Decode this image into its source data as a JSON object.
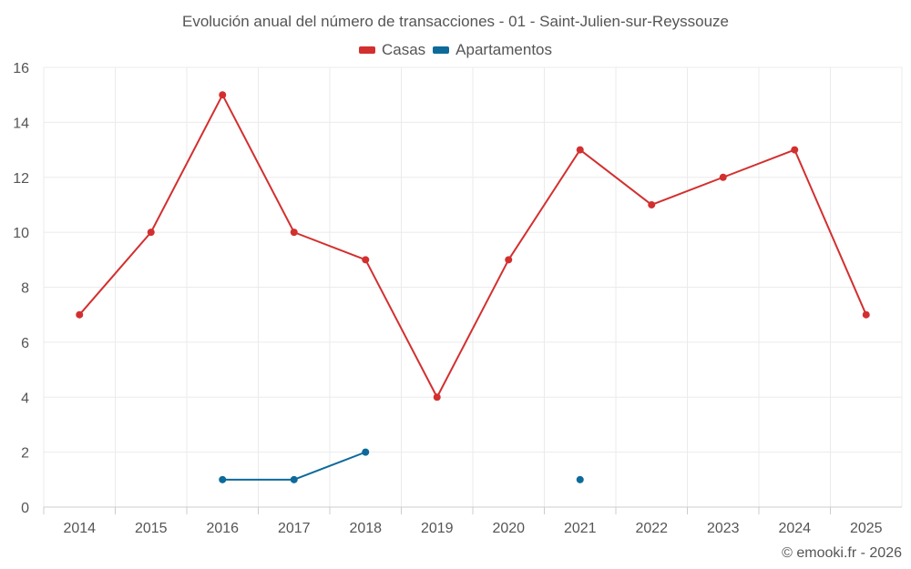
{
  "chart_data": {
    "type": "line",
    "title": "Evolución anual del número de transacciones - 01 - Saint-Julien-sur-Reyssouze",
    "xlabel": "",
    "ylabel": "",
    "categories": [
      "2014",
      "2015",
      "2016",
      "2017",
      "2018",
      "2019",
      "2020",
      "2021",
      "2022",
      "2023",
      "2024",
      "2025"
    ],
    "ylim": [
      0,
      16
    ],
    "yticks": [
      0,
      2,
      4,
      6,
      8,
      10,
      12,
      14,
      16
    ],
    "grid": true,
    "legend_position": "top-center",
    "series": [
      {
        "name": "Casas",
        "color": "#d32f2f",
        "values": [
          7,
          10,
          15,
          10,
          9,
          4,
          9,
          13,
          11,
          12,
          13,
          7
        ]
      },
      {
        "name": "Apartamentos",
        "color": "#0d6a9a",
        "values": [
          null,
          null,
          1,
          1,
          2,
          null,
          null,
          1,
          null,
          null,
          null,
          null
        ]
      }
    ]
  },
  "footer": {
    "credit": "© emooki.fr - 2026"
  }
}
